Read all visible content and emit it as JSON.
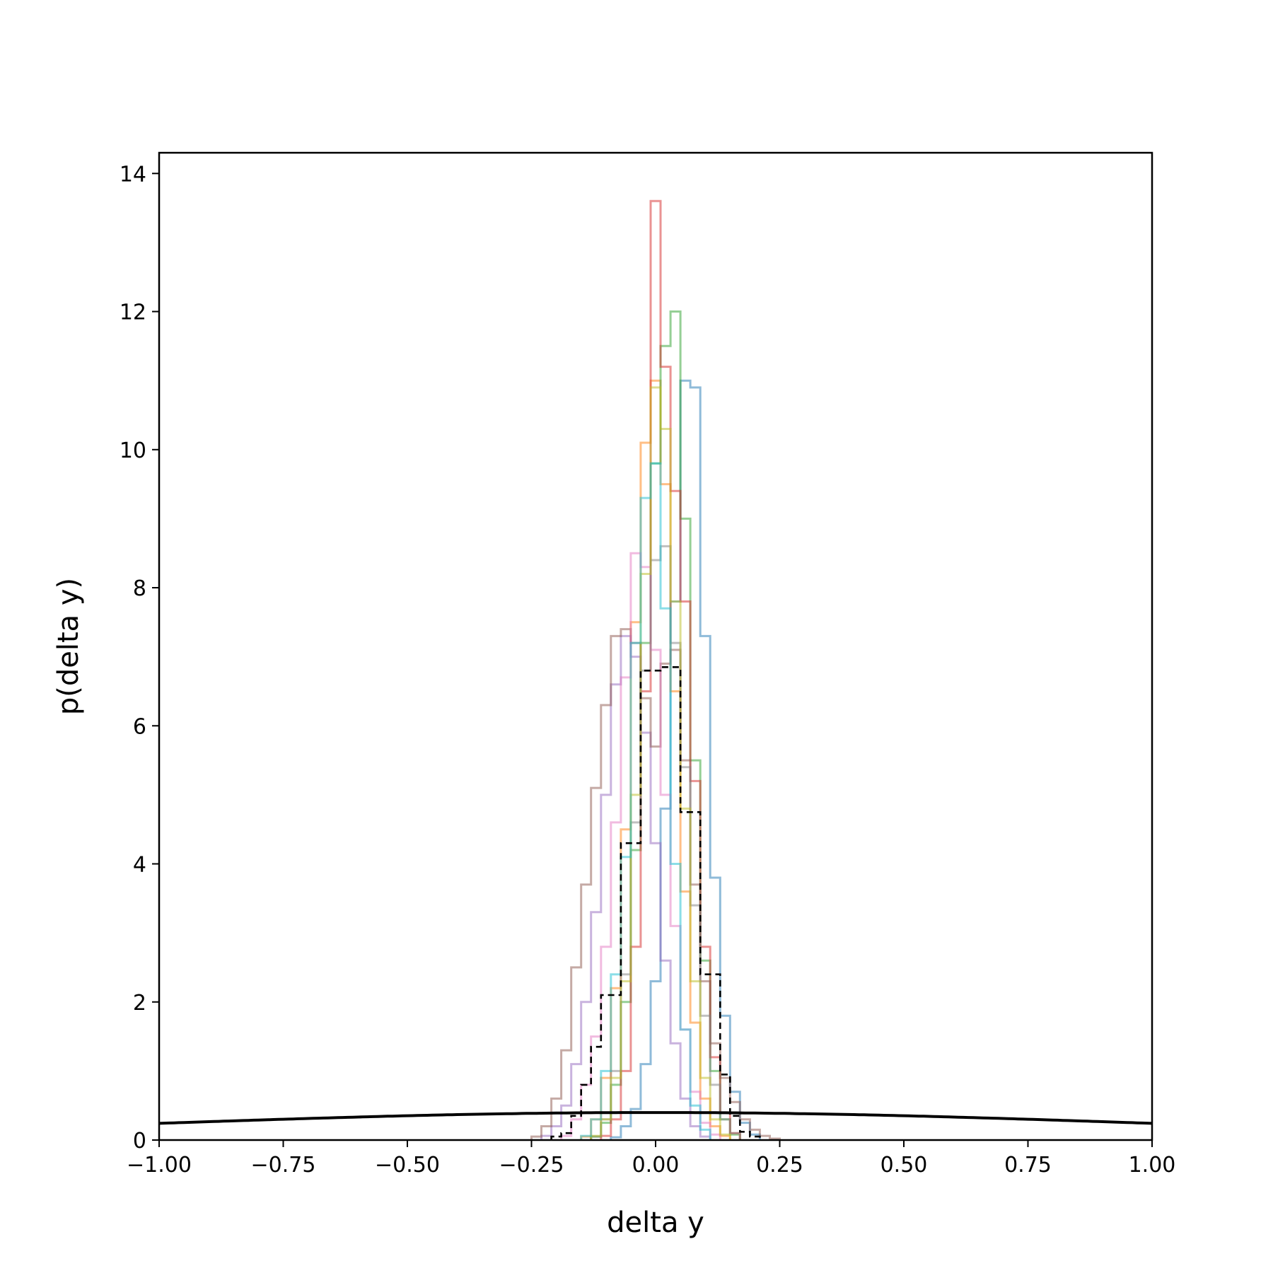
{
  "chart_data": {
    "type": "histogram",
    "xlabel": "delta y",
    "ylabel": "p(delta y)",
    "xlim": [
      -1.0,
      1.0
    ],
    "ylim": [
      0,
      14.3
    ],
    "xticks": [
      -1.0,
      -0.75,
      -0.5,
      -0.25,
      0.0,
      0.25,
      0.5,
      0.75,
      1.0
    ],
    "xtick_labels": [
      "−1.00",
      "−0.75",
      "−0.50",
      "−0.25",
      "0.00",
      "0.25",
      "0.50",
      "0.75",
      "1.00"
    ],
    "yticks": [
      0,
      2,
      4,
      6,
      8,
      10,
      12,
      14
    ],
    "ytick_labels": [
      "0",
      "2",
      "4",
      "6",
      "8",
      "10",
      "12",
      "14"
    ],
    "grid": false,
    "legend": "none",
    "series": [
      {
        "color": "#1f77b4",
        "values": [
          [
            -0.08,
            0.04
          ],
          [
            -0.06,
            0.2
          ],
          [
            -0.04,
            0.45
          ],
          [
            -0.02,
            1.1
          ],
          [
            0.0,
            2.3
          ],
          [
            0.02,
            4.8
          ],
          [
            0.04,
            7.8
          ],
          [
            0.06,
            11.0
          ],
          [
            0.08,
            10.9
          ],
          [
            0.1,
            7.3
          ],
          [
            0.12,
            3.8
          ],
          [
            0.14,
            1.8
          ],
          [
            0.16,
            0.7
          ],
          [
            0.18,
            0.25
          ],
          [
            0.2,
            0.08
          ]
        ]
      },
      {
        "color": "#ff7f0e",
        "values": [
          [
            -0.14,
            0.05
          ],
          [
            -0.12,
            0.3
          ],
          [
            -0.1,
            0.9
          ],
          [
            -0.08,
            2.2
          ],
          [
            -0.06,
            4.5
          ],
          [
            -0.04,
            7.5
          ],
          [
            -0.02,
            10.1
          ],
          [
            0.0,
            11.0
          ],
          [
            0.02,
            9.5
          ],
          [
            0.04,
            6.5
          ],
          [
            0.06,
            3.6
          ],
          [
            0.08,
            1.7
          ],
          [
            0.1,
            0.6
          ],
          [
            0.12,
            0.2
          ],
          [
            0.14,
            0.06
          ]
        ]
      },
      {
        "color": "#2ca02c",
        "values": [
          [
            -0.12,
            0.05
          ],
          [
            -0.1,
            0.25
          ],
          [
            -0.08,
            0.8
          ],
          [
            -0.06,
            2.0
          ],
          [
            -0.04,
            4.2
          ],
          [
            -0.02,
            7.2
          ],
          [
            0.0,
            9.8
          ],
          [
            0.02,
            11.5
          ],
          [
            0.04,
            12.0
          ],
          [
            0.06,
            9.0
          ],
          [
            0.08,
            5.5
          ],
          [
            0.1,
            2.6
          ],
          [
            0.12,
            1.0
          ],
          [
            0.14,
            0.3
          ],
          [
            0.16,
            0.08
          ]
        ]
      },
      {
        "color": "#d62728",
        "values": [
          [
            -0.1,
            0.06
          ],
          [
            -0.08,
            0.3
          ],
          [
            -0.06,
            1.0
          ],
          [
            -0.04,
            2.8
          ],
          [
            -0.02,
            6.5
          ],
          [
            0.0,
            13.6
          ],
          [
            0.02,
            11.2
          ],
          [
            0.04,
            9.4
          ],
          [
            0.06,
            7.8
          ],
          [
            0.08,
            5.2
          ],
          [
            0.1,
            2.8
          ],
          [
            0.12,
            1.2
          ],
          [
            0.14,
            0.4
          ],
          [
            0.16,
            0.1
          ]
        ]
      },
      {
        "color": "#9467bd",
        "values": [
          [
            -0.22,
            0.06
          ],
          [
            -0.2,
            0.2
          ],
          [
            -0.18,
            0.5
          ],
          [
            -0.16,
            1.1
          ],
          [
            -0.14,
            2.0
          ],
          [
            -0.12,
            3.3
          ],
          [
            -0.1,
            5.0
          ],
          [
            -0.08,
            6.6
          ],
          [
            -0.06,
            7.3
          ],
          [
            -0.04,
            7.0
          ],
          [
            -0.02,
            5.9
          ],
          [
            0.0,
            4.3
          ],
          [
            0.02,
            2.6
          ],
          [
            0.04,
            1.4
          ],
          [
            0.06,
            0.6
          ],
          [
            0.08,
            0.2
          ],
          [
            0.1,
            0.05
          ]
        ]
      },
      {
        "color": "#8c564b",
        "values": [
          [
            -0.24,
            0.05
          ],
          [
            -0.22,
            0.2
          ],
          [
            -0.2,
            0.6
          ],
          [
            -0.18,
            1.3
          ],
          [
            -0.16,
            2.5
          ],
          [
            -0.14,
            3.7
          ],
          [
            -0.12,
            5.1
          ],
          [
            -0.1,
            6.3
          ],
          [
            -0.08,
            7.3
          ],
          [
            -0.06,
            7.4
          ],
          [
            -0.04,
            7.2
          ],
          [
            -0.02,
            6.4
          ],
          [
            0.0,
            5.7
          ],
          [
            0.02,
            6.9
          ],
          [
            0.04,
            7.1
          ],
          [
            0.06,
            5.5
          ],
          [
            0.08,
            3.7
          ],
          [
            0.1,
            2.3
          ],
          [
            0.12,
            1.4
          ],
          [
            0.14,
            0.9
          ],
          [
            0.16,
            0.55
          ],
          [
            0.18,
            0.3
          ],
          [
            0.2,
            0.15
          ],
          [
            0.22,
            0.06
          ],
          [
            0.24,
            0.02
          ]
        ]
      },
      {
        "color": "#e377c2",
        "values": [
          [
            -0.18,
            0.06
          ],
          [
            -0.16,
            0.3
          ],
          [
            -0.14,
            0.8
          ],
          [
            -0.12,
            1.5
          ],
          [
            -0.1,
            2.8
          ],
          [
            -0.08,
            4.6
          ],
          [
            -0.06,
            6.7
          ],
          [
            -0.04,
            8.5
          ],
          [
            -0.02,
            8.3
          ],
          [
            0.0,
            7.1
          ],
          [
            0.02,
            5.0
          ],
          [
            0.04,
            3.1
          ],
          [
            0.06,
            1.6
          ],
          [
            0.08,
            0.7
          ],
          [
            0.1,
            0.25
          ],
          [
            0.12,
            0.08
          ]
        ]
      },
      {
        "color": "#7f7f7f",
        "values": [
          [
            -0.12,
            0.05
          ],
          [
            -0.1,
            0.3
          ],
          [
            -0.08,
            1.0
          ],
          [
            -0.06,
            2.4
          ],
          [
            -0.04,
            4.6
          ],
          [
            -0.02,
            6.8
          ],
          [
            0.0,
            8.4
          ],
          [
            0.02,
            8.6
          ],
          [
            0.04,
            7.2
          ],
          [
            0.06,
            5.4
          ],
          [
            0.08,
            3.4
          ],
          [
            0.1,
            1.8
          ],
          [
            0.12,
            0.8
          ],
          [
            0.14,
            0.3
          ],
          [
            0.16,
            0.1
          ]
        ]
      },
      {
        "color": "#bcbd22",
        "values": [
          [
            -0.12,
            0.06
          ],
          [
            -0.1,
            0.3
          ],
          [
            -0.08,
            0.9
          ],
          [
            -0.06,
            2.3
          ],
          [
            -0.04,
            5.0
          ],
          [
            -0.02,
            8.2
          ],
          [
            0.0,
            10.9
          ],
          [
            0.02,
            10.3
          ],
          [
            0.04,
            7.8
          ],
          [
            0.06,
            4.8
          ],
          [
            0.08,
            2.3
          ],
          [
            0.1,
            0.9
          ],
          [
            0.12,
            0.3
          ],
          [
            0.14,
            0.08
          ]
        ]
      },
      {
        "color": "#17becf",
        "values": [
          [
            -0.14,
            0.06
          ],
          [
            -0.12,
            0.3
          ],
          [
            -0.1,
            1.0
          ],
          [
            -0.08,
            2.4
          ],
          [
            -0.06,
            4.1
          ],
          [
            -0.04,
            7.2
          ],
          [
            -0.02,
            9.3
          ],
          [
            0.0,
            9.8
          ],
          [
            0.02,
            7.7
          ],
          [
            0.04,
            4.0
          ],
          [
            0.06,
            1.6
          ],
          [
            0.08,
            0.5
          ],
          [
            0.1,
            0.15
          ]
        ]
      }
    ],
    "dashed_series": {
      "color": "#000000",
      "values": [
        [
          -0.2,
          0.05
        ],
        [
          -0.18,
          0.1
        ],
        [
          -0.16,
          0.35
        ],
        [
          -0.14,
          0.8
        ],
        [
          -0.12,
          1.35
        ],
        [
          -0.1,
          2.1
        ],
        [
          -0.08,
          2.1
        ],
        [
          -0.06,
          4.3
        ],
        [
          -0.04,
          4.3
        ],
        [
          -0.02,
          6.8
        ],
        [
          0.0,
          6.8
        ],
        [
          0.02,
          6.85
        ],
        [
          0.04,
          6.85
        ],
        [
          0.06,
          4.75
        ],
        [
          0.08,
          4.75
        ],
        [
          0.1,
          2.4
        ],
        [
          0.12,
          2.4
        ],
        [
          0.14,
          0.95
        ],
        [
          0.16,
          0.35
        ],
        [
          0.18,
          0.12
        ],
        [
          0.2,
          0.05
        ]
      ]
    },
    "curve": {
      "color": "#000000",
      "mean": 0.0,
      "std": 1.0,
      "type": "normal-pdf"
    }
  }
}
